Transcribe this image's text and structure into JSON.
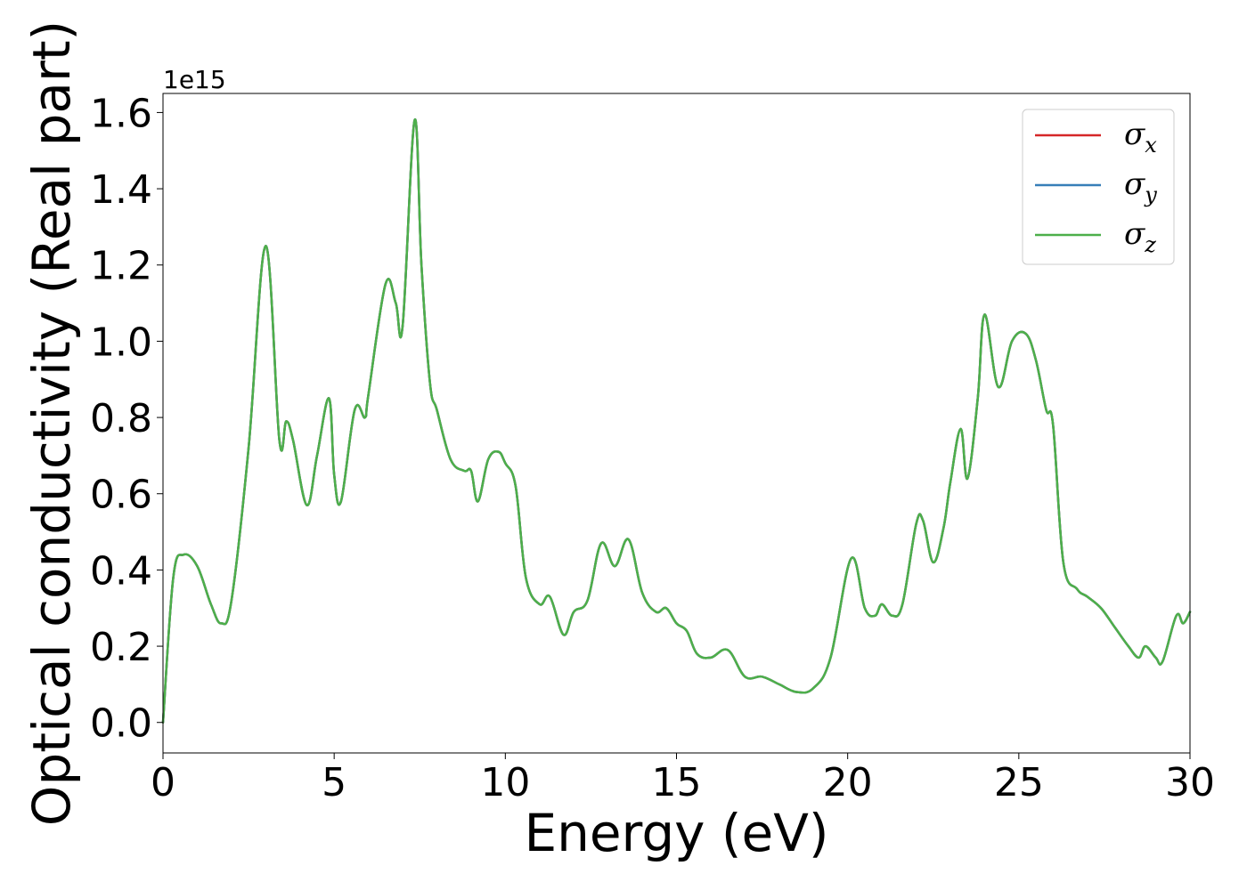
{
  "chart_data": {
    "type": "line",
    "xlabel": "Energy (eV)",
    "ylabel": "Optical conductivity (Real part)",
    "y_offset_label": "1e15",
    "xlim": [
      0,
      30
    ],
    "ylim": [
      -0.08,
      1.65
    ],
    "xticks": [
      0,
      5,
      10,
      15,
      20,
      25,
      30
    ],
    "xtick_labels": [
      "0",
      "5",
      "10",
      "15",
      "20",
      "25",
      "30"
    ],
    "yticks": [
      0.0,
      0.2,
      0.4,
      0.6,
      0.8,
      1.0,
      1.2,
      1.4,
      1.6
    ],
    "ytick_labels": [
      "0.0",
      "0.2",
      "0.4",
      "0.6",
      "0.8",
      "1.0",
      "1.2",
      "1.4",
      "1.6"
    ],
    "grid": false,
    "legend_position": "top-right",
    "x": [
      0,
      0.3,
      0.6,
      1.0,
      1.4,
      1.7,
      2.0,
      2.5,
      3.0,
      3.4,
      3.6,
      3.8,
      4.2,
      4.5,
      4.85,
      5.0,
      5.2,
      5.6,
      5.9,
      6.0,
      6.5,
      6.8,
      7.0,
      7.35,
      7.55,
      7.8,
      8.0,
      8.4,
      8.8,
      9.0,
      9.2,
      9.5,
      9.8,
      10.0,
      10.3,
      10.6,
      11.0,
      11.3,
      11.7,
      12.0,
      12.4,
      12.8,
      13.2,
      13.6,
      14.0,
      14.4,
      14.7,
      15.0,
      15.3,
      15.6,
      16.0,
      16.5,
      17.0,
      17.5,
      18.0,
      18.5,
      19.0,
      19.5,
      20.1,
      20.5,
      20.8,
      21.0,
      21.3,
      21.6,
      22.0,
      22.2,
      22.5,
      22.8,
      23.0,
      23.3,
      23.5,
      23.8,
      24.0,
      24.4,
      24.8,
      25.2,
      25.5,
      25.8,
      26.0,
      26.3,
      26.7,
      27.0,
      27.4,
      27.8,
      28.2,
      28.5,
      28.7,
      29.0,
      29.2,
      29.6,
      29.8,
      30.0
    ],
    "series": [
      {
        "name": "σx",
        "color": "#d62728",
        "values": [
          0.0,
          0.38,
          0.44,
          0.41,
          0.31,
          0.26,
          0.32,
          0.72,
          1.25,
          0.74,
          0.79,
          0.74,
          0.57,
          0.7,
          0.85,
          0.65,
          0.58,
          0.82,
          0.8,
          0.86,
          1.15,
          1.1,
          1.04,
          1.58,
          1.2,
          0.89,
          0.82,
          0.69,
          0.66,
          0.66,
          0.58,
          0.69,
          0.71,
          0.68,
          0.62,
          0.38,
          0.31,
          0.33,
          0.23,
          0.29,
          0.32,
          0.47,
          0.41,
          0.48,
          0.34,
          0.29,
          0.3,
          0.26,
          0.24,
          0.18,
          0.17,
          0.19,
          0.12,
          0.12,
          0.1,
          0.08,
          0.09,
          0.17,
          0.43,
          0.3,
          0.28,
          0.31,
          0.28,
          0.31,
          0.52,
          0.53,
          0.42,
          0.51,
          0.63,
          0.77,
          0.64,
          0.85,
          1.07,
          0.88,
          1.0,
          1.02,
          0.95,
          0.82,
          0.78,
          0.42,
          0.35,
          0.33,
          0.3,
          0.25,
          0.2,
          0.17,
          0.2,
          0.17,
          0.16,
          0.28,
          0.26,
          0.29
        ]
      },
      {
        "name": "σy",
        "color": "#377eb8",
        "values": [
          0.0,
          0.38,
          0.44,
          0.41,
          0.31,
          0.26,
          0.32,
          0.72,
          1.25,
          0.74,
          0.79,
          0.74,
          0.57,
          0.7,
          0.85,
          0.65,
          0.58,
          0.82,
          0.8,
          0.86,
          1.15,
          1.1,
          1.04,
          1.58,
          1.2,
          0.89,
          0.82,
          0.69,
          0.66,
          0.66,
          0.58,
          0.69,
          0.71,
          0.68,
          0.62,
          0.38,
          0.31,
          0.33,
          0.23,
          0.29,
          0.32,
          0.47,
          0.41,
          0.48,
          0.34,
          0.29,
          0.3,
          0.26,
          0.24,
          0.18,
          0.17,
          0.19,
          0.12,
          0.12,
          0.1,
          0.08,
          0.09,
          0.17,
          0.43,
          0.3,
          0.28,
          0.31,
          0.28,
          0.31,
          0.52,
          0.53,
          0.42,
          0.51,
          0.63,
          0.77,
          0.64,
          0.85,
          1.07,
          0.88,
          1.0,
          1.02,
          0.95,
          0.82,
          0.78,
          0.42,
          0.35,
          0.33,
          0.3,
          0.25,
          0.2,
          0.17,
          0.2,
          0.17,
          0.16,
          0.28,
          0.26,
          0.29
        ]
      },
      {
        "name": "σz",
        "color": "#4daf4a",
        "values": [
          0.0,
          0.38,
          0.44,
          0.41,
          0.31,
          0.26,
          0.32,
          0.72,
          1.25,
          0.74,
          0.79,
          0.74,
          0.57,
          0.7,
          0.85,
          0.65,
          0.58,
          0.82,
          0.8,
          0.86,
          1.15,
          1.1,
          1.04,
          1.58,
          1.2,
          0.89,
          0.82,
          0.69,
          0.66,
          0.66,
          0.58,
          0.69,
          0.71,
          0.68,
          0.62,
          0.38,
          0.31,
          0.33,
          0.23,
          0.29,
          0.32,
          0.47,
          0.41,
          0.48,
          0.34,
          0.29,
          0.3,
          0.26,
          0.24,
          0.18,
          0.17,
          0.19,
          0.12,
          0.12,
          0.1,
          0.08,
          0.09,
          0.17,
          0.43,
          0.3,
          0.28,
          0.31,
          0.28,
          0.31,
          0.52,
          0.53,
          0.42,
          0.51,
          0.63,
          0.77,
          0.64,
          0.85,
          1.07,
          0.88,
          1.0,
          1.02,
          0.95,
          0.82,
          0.78,
          0.42,
          0.35,
          0.33,
          0.3,
          0.25,
          0.2,
          0.17,
          0.2,
          0.17,
          0.16,
          0.28,
          0.26,
          0.29
        ]
      }
    ],
    "legend": [
      {
        "symbol": "σ",
        "sub": "x",
        "color": "#d62728"
      },
      {
        "symbol": "σ",
        "sub": "y",
        "color": "#377eb8"
      },
      {
        "symbol": "σ",
        "sub": "z",
        "color": "#4daf4a"
      }
    ]
  }
}
